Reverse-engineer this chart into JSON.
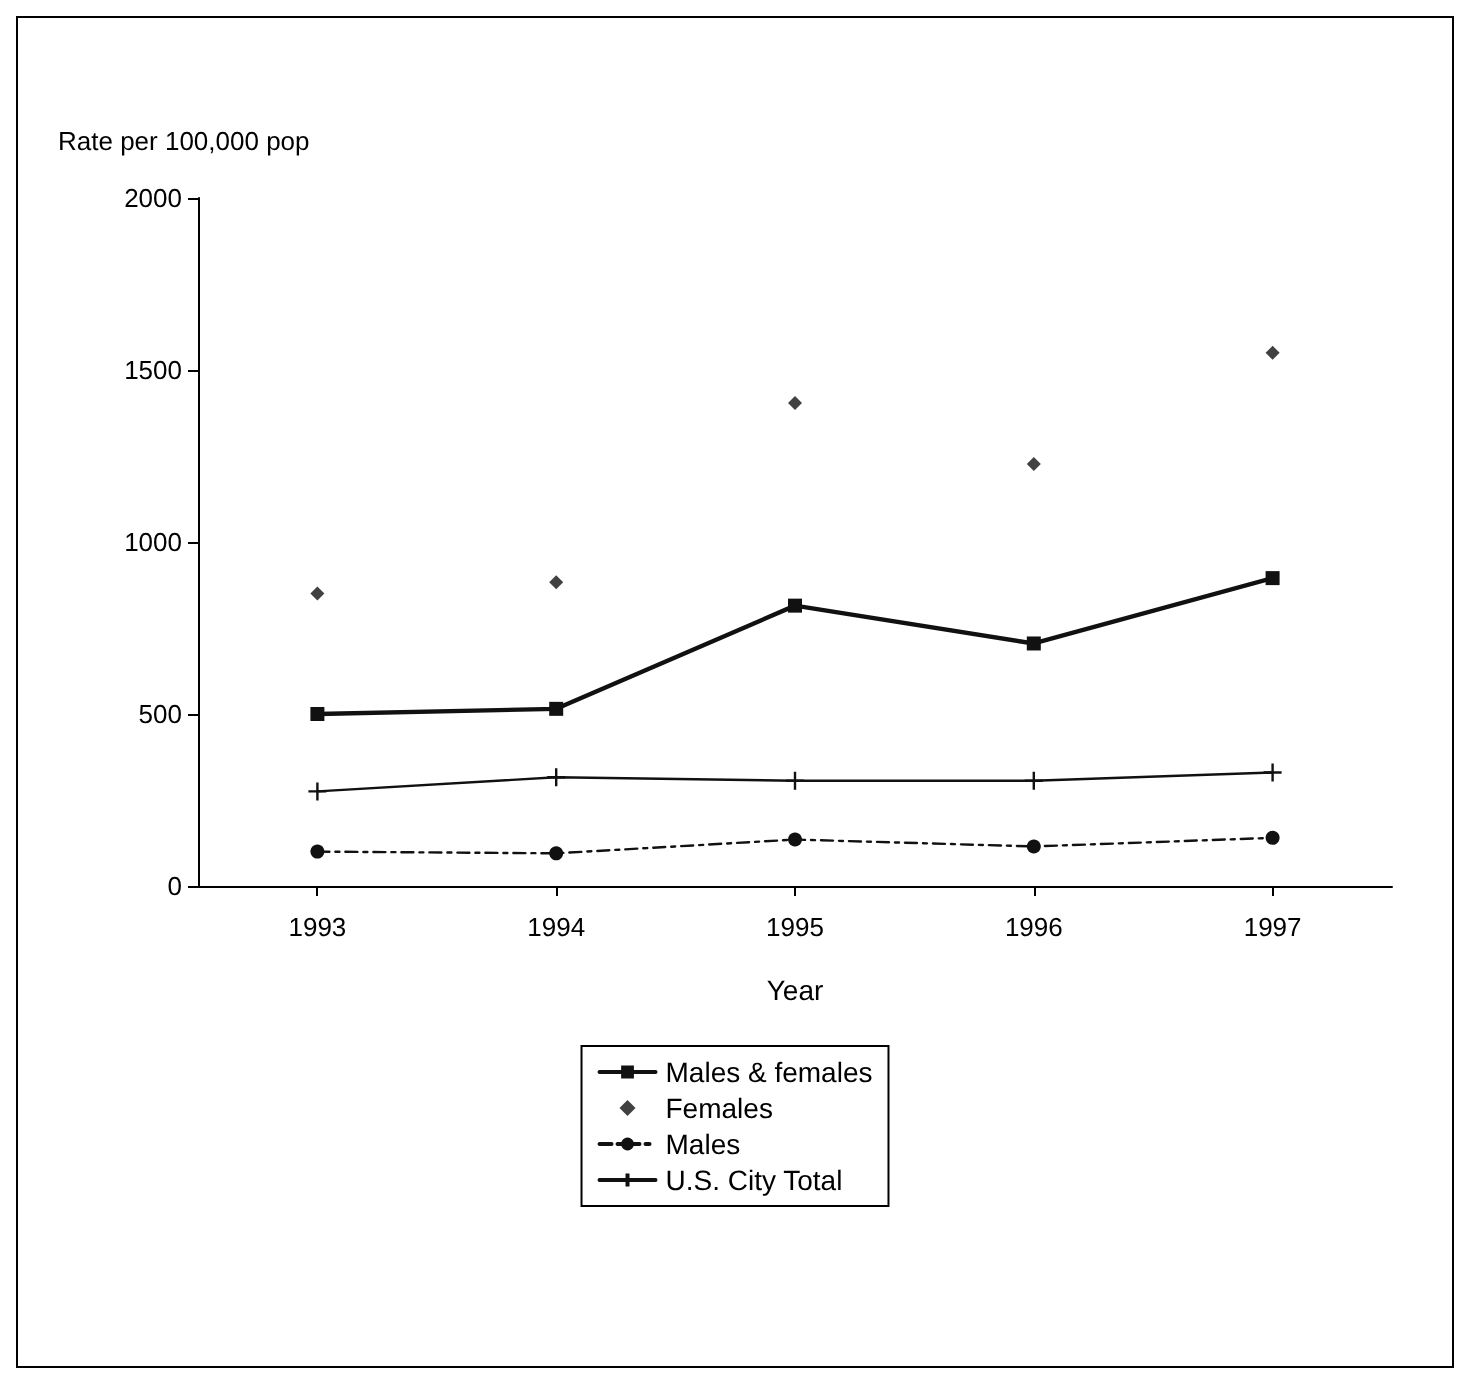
{
  "chart_data": {
    "type": "line",
    "ylabel": "Rate per 100,000 pop",
    "xlabel": "Year",
    "categories": [
      "1993",
      "1994",
      "1995",
      "1996",
      "1997"
    ],
    "series": [
      {
        "name": "Males & females",
        "color": "#111111",
        "marker": "square",
        "line_style": "solid",
        "values": [
          500,
          515,
          815,
          705,
          895
        ]
      },
      {
        "name": "Females",
        "type": "scatter",
        "color": "#111111",
        "marker": "diamond",
        "values": [
          850,
          883,
          1404,
          1227,
          1550
        ]
      },
      {
        "name": "Males",
        "color": "#111111",
        "marker": "circle",
        "line_style": "dashed",
        "values": [
          100,
          95,
          135,
          115,
          140
        ]
      },
      {
        "name": "U.S. City Total",
        "color": "#111111",
        "marker": "cross",
        "line_style": "solid",
        "values": [
          275,
          316,
          306,
          306,
          330
        ]
      }
    ],
    "ylim": [
      0,
      2000
    ],
    "yticks": [
      0,
      500,
      1000,
      1500,
      2000
    ],
    "grid": false,
    "legend": "bottom"
  }
}
